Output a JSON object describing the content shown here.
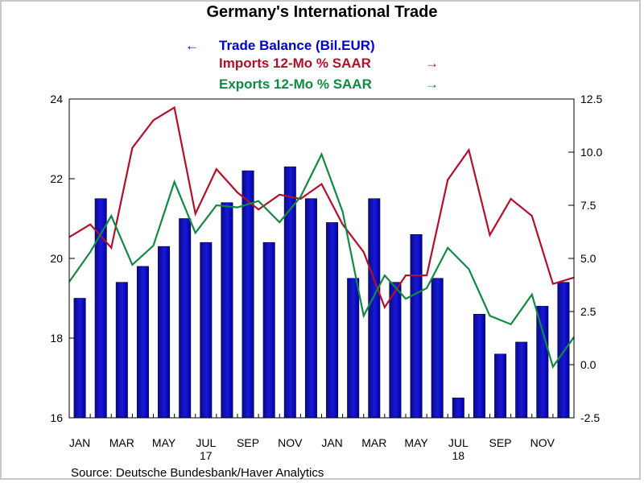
{
  "chart_data": {
    "type": "bar",
    "title": "Germany's International Trade",
    "source": "Source:  Deutsche Bundesbank/Haver Analytics",
    "x_labels": [
      "JAN",
      "MAR",
      "MAY",
      "JUL",
      "SEP",
      "NOV",
      "JAN",
      "MAR",
      "MAY",
      "JUL",
      "SEP",
      "NOV"
    ],
    "x_label_months": [
      0,
      2,
      4,
      6,
      8,
      10,
      12,
      14,
      16,
      18,
      20,
      22
    ],
    "year_labels": [
      "17",
      "18"
    ],
    "year_label_months": [
      6,
      18
    ],
    "left_axis": {
      "min": 16,
      "max": 24,
      "ticks": [
        "16",
        "18",
        "20",
        "22",
        "24"
      ]
    },
    "right_axis": {
      "min": -2.5,
      "max": 12.5,
      "ticks": [
        "-2.5",
        "0.0",
        "2.5",
        "5.0",
        "7.5",
        "10.0",
        "12.5"
      ]
    },
    "series": [
      {
        "name": "Trade Balance (Bil.EUR)",
        "kind": "bar",
        "axis": "left",
        "color": "#0000cc",
        "legend_arrow": "←",
        "values": [
          19.0,
          21.5,
          19.4,
          19.8,
          20.3,
          21.0,
          20.4,
          21.4,
          22.2,
          20.4,
          22.3,
          21.5,
          20.9,
          19.5,
          21.5,
          19.4,
          20.6,
          19.5,
          16.5,
          18.6,
          17.6,
          17.9,
          18.8,
          19.4
        ]
      },
      {
        "name": "Imports 12-Mo % SAAR",
        "kind": "line",
        "axis": "right",
        "color": "#b0102a",
        "legend_arrow": "→",
        "values": [
          6.0,
          6.6,
          5.5,
          10.2,
          11.5,
          12.1,
          7.1,
          9.2,
          8.1,
          7.3,
          8.0,
          7.8,
          8.5,
          6.6,
          5.3,
          2.7,
          4.2,
          4.2,
          8.7,
          10.1,
          6.1,
          7.8,
          7.0,
          3.8,
          4.1
        ]
      },
      {
        "name": "Exports 12-Mo % SAAR",
        "kind": "line",
        "axis": "right",
        "color": "#118844",
        "legend_arrow": "→",
        "values": [
          3.9,
          5.3,
          7.0,
          4.7,
          5.6,
          8.6,
          6.2,
          7.5,
          7.4,
          7.7,
          6.7,
          7.9,
          9.9,
          7.2,
          2.3,
          4.2,
          3.1,
          3.6,
          5.5,
          4.5,
          2.3,
          1.9,
          3.3,
          -0.1,
          1.3
        ]
      }
    ]
  }
}
